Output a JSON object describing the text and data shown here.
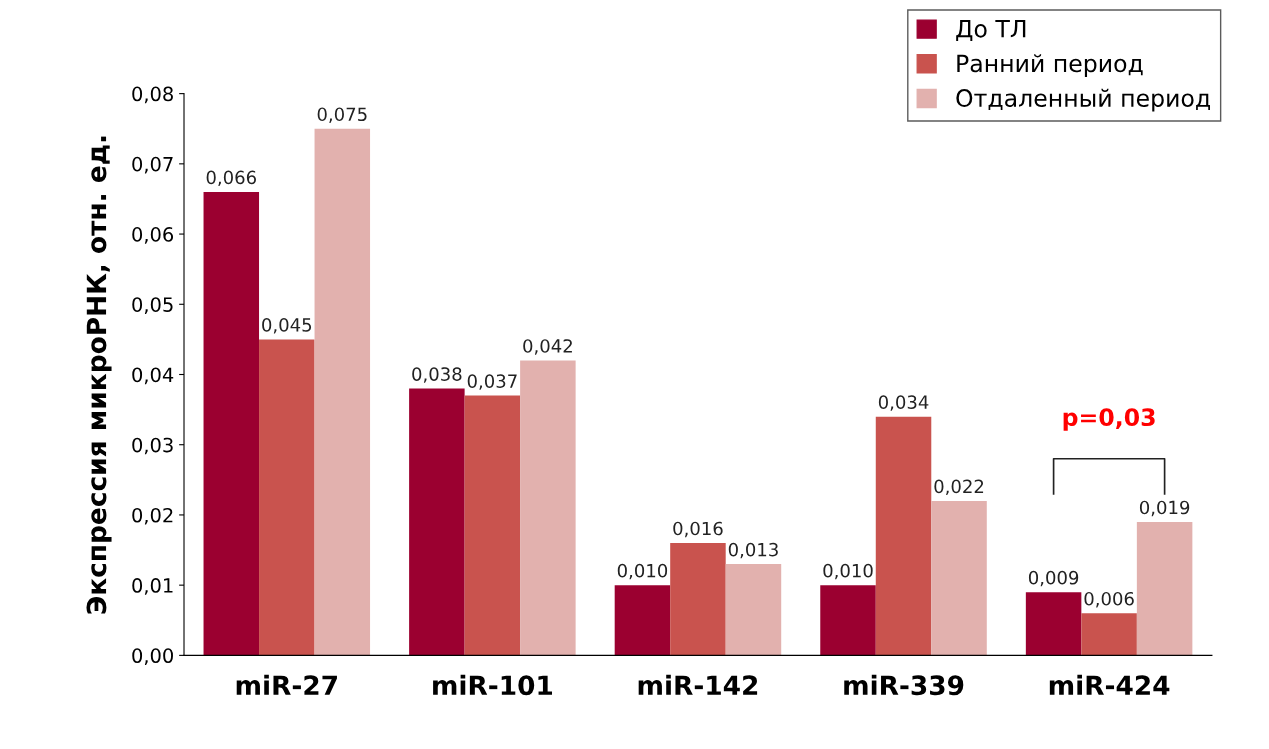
{
  "chart_data": {
    "type": "bar",
    "ylabel": "Экспрессия микроРНК, отн. ед.",
    "categories": [
      "miR-27",
      "miR-101",
      "miR-142",
      "miR-339",
      "miR-424"
    ],
    "series": [
      {
        "name": "До ТЛ",
        "color": "#9b0030",
        "values": [
          0.066,
          0.038,
          0.01,
          0.01,
          0.009
        ],
        "value_labels": [
          "0,066",
          "0,038",
          "0,010",
          "0,010",
          "0,009"
        ]
      },
      {
        "name": "Ранний период",
        "color": "#c9534e",
        "values": [
          0.045,
          0.037,
          0.016,
          0.034,
          0.006
        ],
        "value_labels": [
          "0,045",
          "0,037",
          "0,016",
          "0,034",
          "0,006"
        ]
      },
      {
        "name": "Отдаленный период",
        "color": "#e2b1ae",
        "values": [
          0.075,
          0.042,
          0.013,
          0.022,
          0.019
        ],
        "value_labels": [
          "0,075",
          "0,042",
          "0,013",
          "0,022",
          "0,019"
        ]
      }
    ],
    "ylim": [
      0,
      0.08
    ],
    "yticks": [
      {
        "value": 0,
        "label": "0,00"
      },
      {
        "value": 0.01,
        "label": "0,01"
      },
      {
        "value": 0.02,
        "label": "0,02"
      },
      {
        "value": 0.03,
        "label": "0,03"
      },
      {
        "value": 0.04,
        "label": "0,04"
      },
      {
        "value": 0.05,
        "label": "0,05"
      },
      {
        "value": 0.06,
        "label": "0,06"
      },
      {
        "value": 0.07,
        "label": "0,07"
      },
      {
        "value": 0.08,
        "label": "0,08"
      }
    ],
    "annotations": [
      "p=0,03"
    ],
    "grid": false,
    "legend": "top right"
  }
}
